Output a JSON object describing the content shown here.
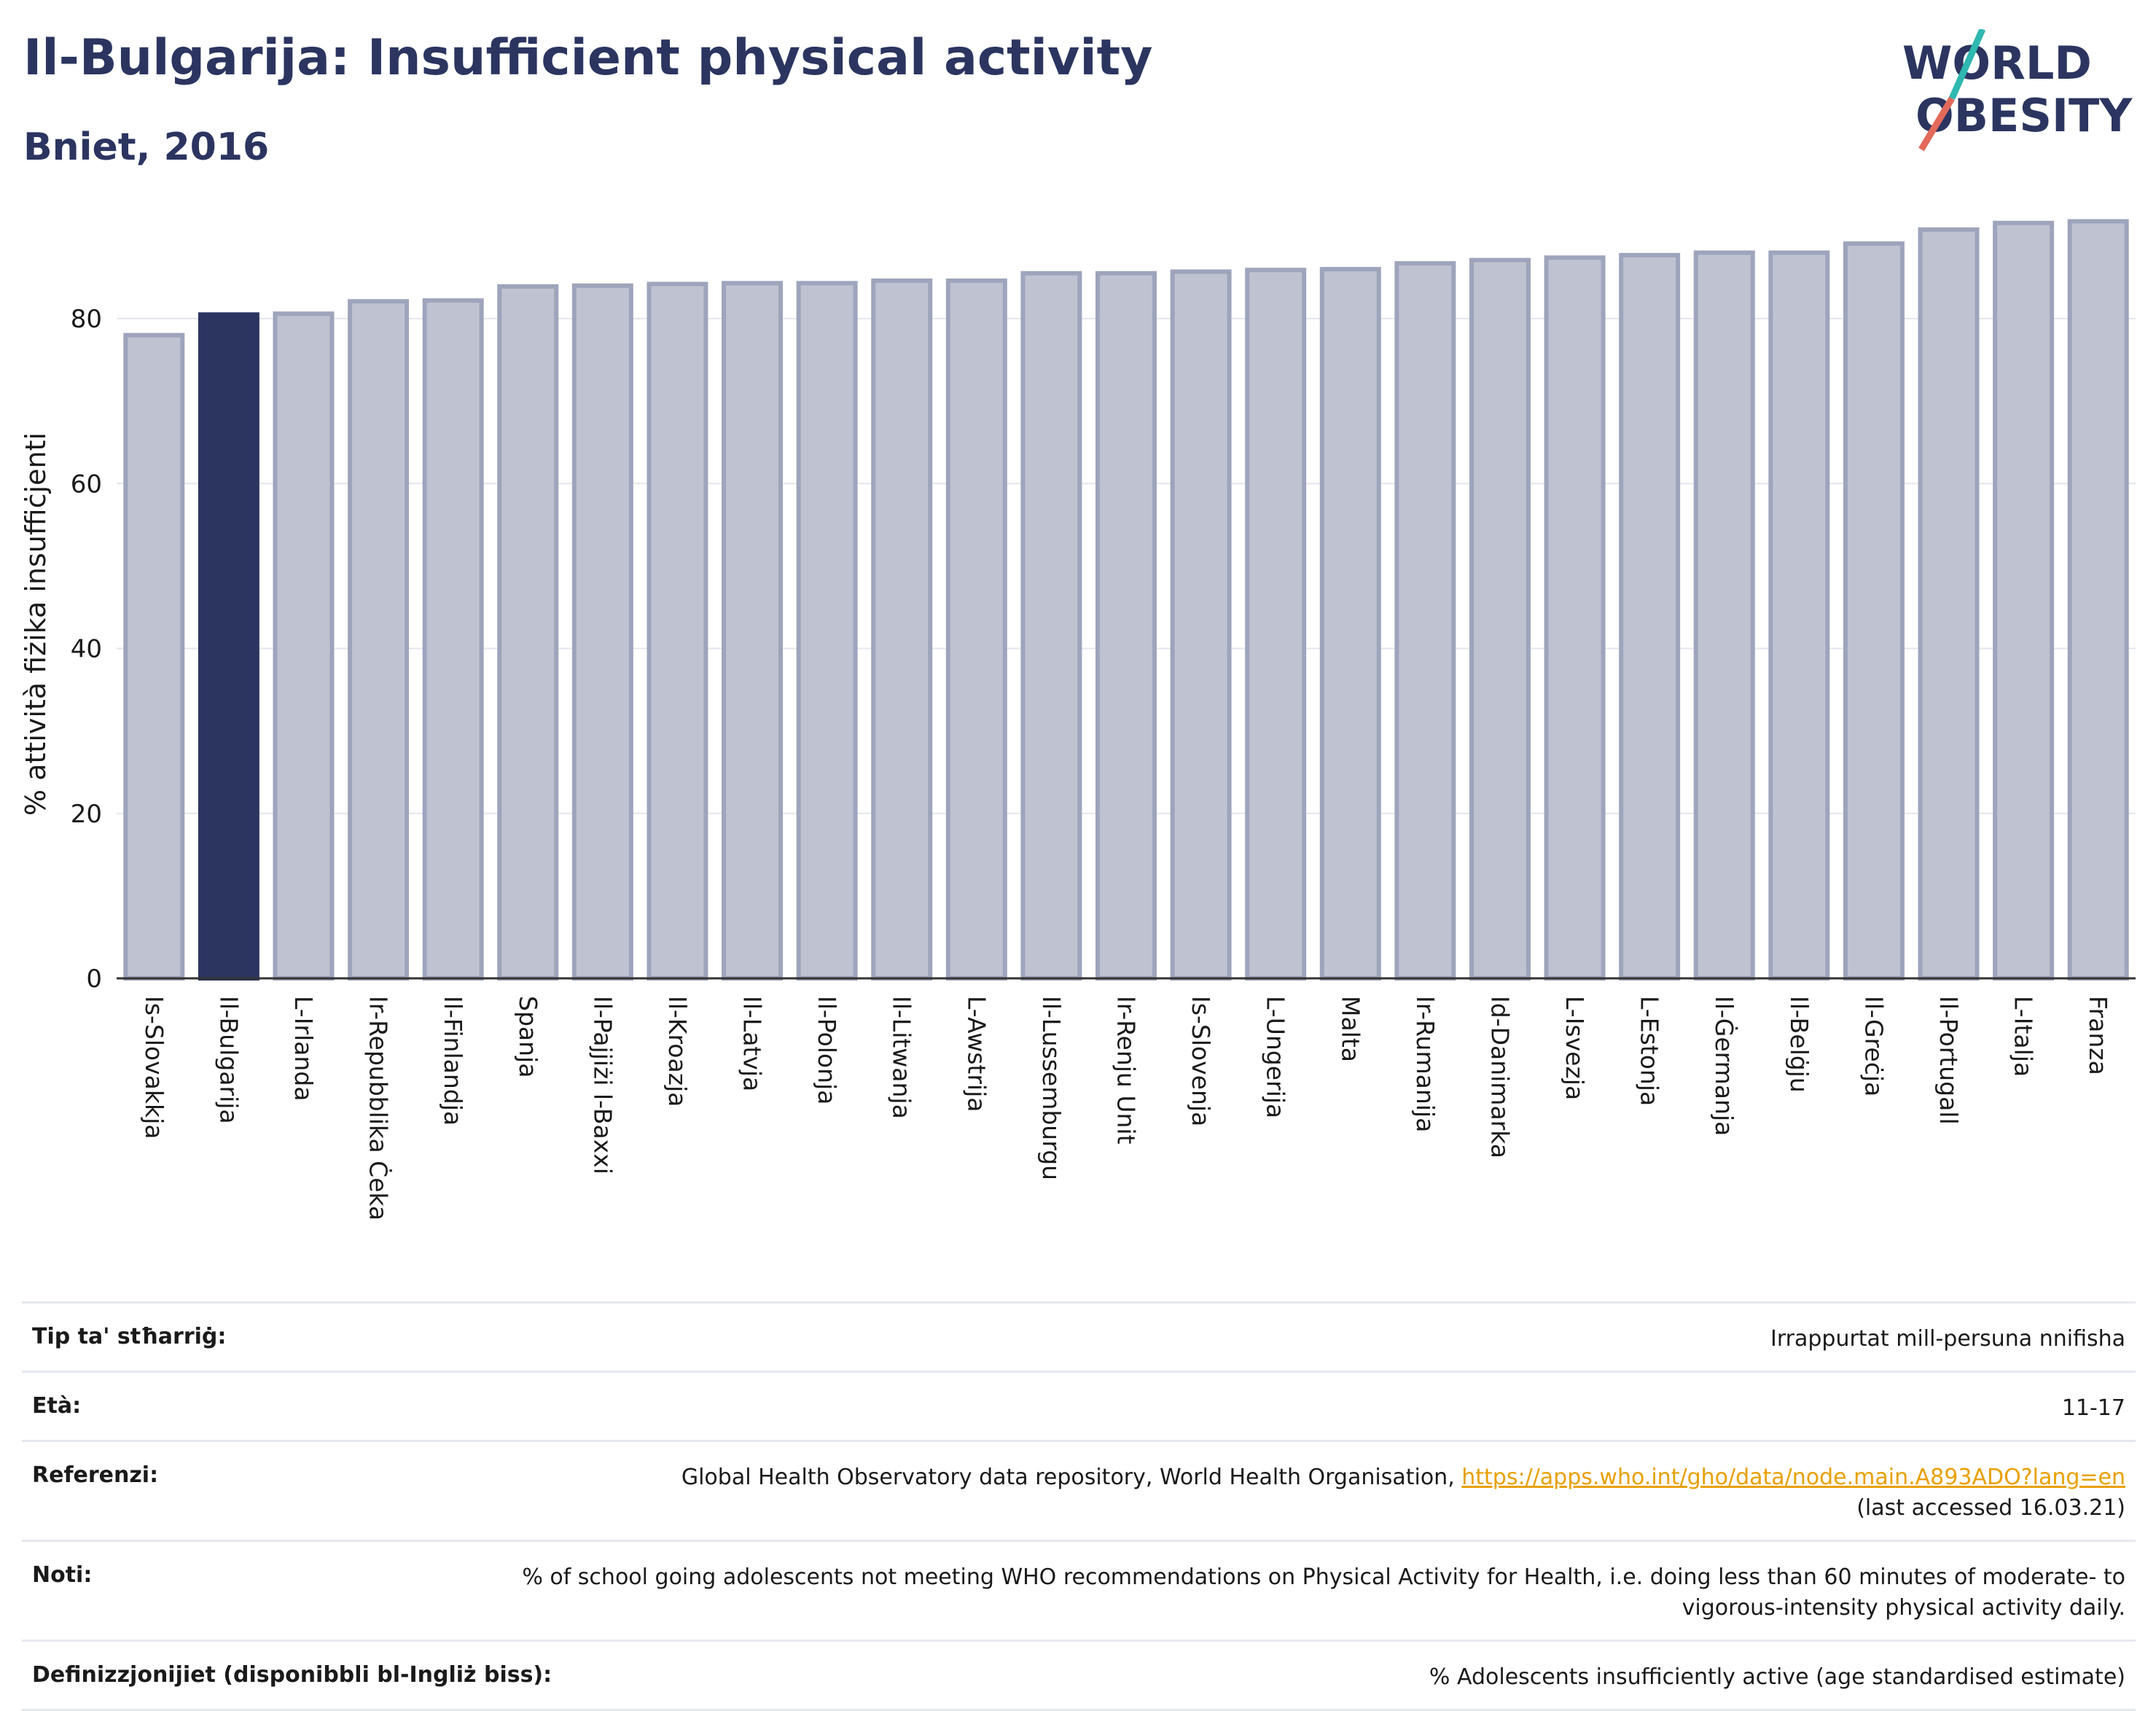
{
  "header": {
    "title": "Il-Bulgarija: Insufficient physical activity",
    "subtitle": "Bniet, 2016",
    "logo_line1": "WORLD",
    "logo_line2": "OBESITY"
  },
  "colors": {
    "highlight": "#2b3560",
    "bar_fill": "#bfc3d1",
    "bar_stroke": "#9ea4bb",
    "logo_accent_teal": "#2fb8b0",
    "logo_accent_red": "#e36a5a"
  },
  "chart_data": {
    "type": "bar",
    "ylabel": "% attività fiżika insuffiċjenti",
    "ylim": [
      0,
      93
    ],
    "yticks": [
      0,
      20,
      40,
      60,
      80
    ],
    "grid": true,
    "highlight_index": 1,
    "categories": [
      "Is-Slovakkja",
      "Il-Bulgarija",
      "L-Irlanda",
      "Ir-Repubblika Ċeka",
      "Il-Finlandja",
      "Spanja",
      "Il-Pajjiżi l-Baxxi",
      "Il-Kroazja",
      "Il-Latvja",
      "Il-Polonja",
      "Il-Litwanja",
      "L-Awstrija",
      "Il-Lussemburgu",
      "Ir-Renju Unit",
      "Is-Slovenja",
      "L-Ungerija",
      "Malta",
      "Ir-Rumanija",
      "Id-Danimarka",
      "L-Isvezja",
      "L-Estonja",
      "Il-Ġermanja",
      "Il-Belġju",
      "Il-Greċja",
      "Il-Portugall",
      "L-Italja",
      "Franza"
    ],
    "values": [
      78.0,
      80.5,
      80.6,
      82.1,
      82.2,
      83.9,
      84.0,
      84.2,
      84.3,
      84.3,
      84.6,
      84.6,
      85.5,
      85.5,
      85.7,
      85.9,
      86.0,
      86.7,
      87.1,
      87.4,
      87.7,
      88.0,
      88.0,
      89.1,
      90.8,
      91.6,
      91.8
    ]
  },
  "info": {
    "rows": [
      {
        "label": "Tip ta' stħarriġ:",
        "value": "Irrappurtat mill-persuna nnifisha"
      },
      {
        "label": "Età:",
        "value": "11-17"
      },
      {
        "label": "Referenzi:",
        "value": "Global Health Observatory data repository, World Health Organisation, ",
        "link": "https://apps.who.int/gho/data/node.main.A893ADO?lang=en",
        "value2": "(last accessed 16.03.21)"
      },
      {
        "label": "Noti:",
        "value": "% of school going adolescents not meeting WHO recommendations on Physical Activity for Health, i.e. doing less than 60 minutes of moderate- to vigorous-intensity physical activity daily."
      },
      {
        "label": "Definizzjonijiet (disponibbli bl-Ingliż biss):",
        "value": "% Adolescents insufficiently active (age standardised estimate)"
      }
    ]
  }
}
